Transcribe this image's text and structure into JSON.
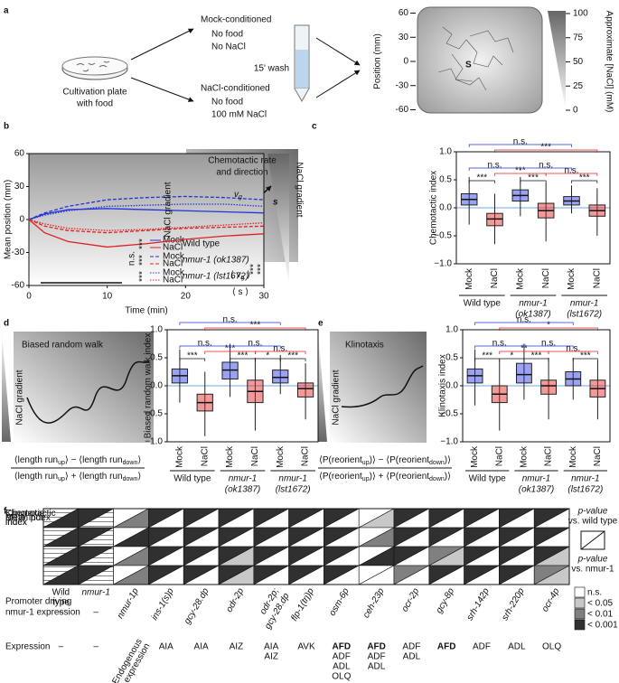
{
  "panel_a": {
    "label": "a",
    "plate": [
      "Cultivation plate",
      "with food"
    ],
    "mock": {
      "title": "Mock-conditioned",
      "lines": [
        "No food",
        "No NaCl"
      ]
    },
    "nacl": {
      "title": "NaCl-conditioned",
      "lines": [
        "No food",
        "100 mM NaCl"
      ]
    },
    "wash": "15' wash",
    "start": "S",
    "position_axis": {
      "label": "Position (mm)",
      "ticks": [
        60,
        30,
        0,
        -30,
        -60
      ]
    },
    "nacl_axis": {
      "label": "Approximate [NaCl] (mM)",
      "ticks": [
        100,
        75,
        50,
        25,
        0
      ]
    }
  },
  "panel_c_diagram": {
    "title": [
      "Chemotactic rate",
      "and direction"
    ],
    "gradient": "NaCl gradient",
    "vg": [
      {
        "t": "v"
      },
      {
        "sub": "g"
      }
    ],
    "s": "s",
    "num": [
      {
        "t": "⟨ v"
      },
      {
        "sub": "g"
      },
      {
        "t": " ⟩"
      }
    ],
    "den": [
      {
        "t": "⟨ s ⟩"
      }
    ]
  },
  "panel_d_diagram": {
    "title": "Biased random walk",
    "gradient": "NaCl gradient",
    "num": [
      {
        "t": "⟨length run"
      },
      {
        "sub": "up"
      },
      {
        "t": "⟩ − ⟨length run"
      },
      {
        "sub": "down"
      },
      {
        "t": "⟩"
      }
    ],
    "den": [
      {
        "t": "⟨length run"
      },
      {
        "sub": "up"
      },
      {
        "t": "⟩ + ⟨length run"
      },
      {
        "sub": "down"
      },
      {
        "t": "⟩"
      }
    ]
  },
  "panel_e_diagram": {
    "title": "Klinotaxis",
    "gradient": "NaCl gradient",
    "num": [
      {
        "t": "⟨P(reorient"
      },
      {
        "sub": "up"
      },
      {
        "t": ")⟩ − ⟨P(reorient"
      },
      {
        "sub": "down"
      },
      {
        "t": ")⟩"
      }
    ],
    "den": [
      {
        "t": "⟨P(reorient"
      },
      {
        "sub": "up"
      },
      {
        "t": ")⟩ + ⟨P(reorient"
      },
      {
        "sub": "down"
      },
      {
        "t": ")⟩"
      }
    ]
  },
  "chart_data": [
    {
      "type": "line",
      "panel": "b",
      "x_label": "Time (min)",
      "y_label": "Mean position (mm)",
      "gradient_label": "NaCl gradient",
      "x": [
        0,
        2,
        5,
        10,
        15,
        20,
        25,
        30
      ],
      "xlim": [
        0,
        30
      ],
      "xticks": [
        0,
        10,
        20,
        30
      ],
      "ylim": [
        -60,
        60
      ],
      "yticks": [
        60,
        30,
        0,
        -30,
        -60
      ],
      "groups": [
        "Wild type",
        "nmur-1 (ok1387)",
        "nmur-1 (lst1672)"
      ],
      "series": [
        {
          "name": "Mock",
          "group": 0,
          "color": "#2233dd",
          "dash": "solid",
          "values": [
            0,
            5,
            9,
            10,
            9,
            8,
            7,
            6
          ]
        },
        {
          "name": "NaCl",
          "group": 0,
          "color": "#e02020",
          "dash": "solid",
          "values": [
            0,
            -12,
            -20,
            -25,
            -22,
            -18,
            -15,
            -13
          ]
        },
        {
          "name": "Mock",
          "group": 1,
          "color": "#2233dd",
          "dash": "dashed",
          "values": [
            0,
            6,
            12,
            18,
            20,
            21,
            20,
            18
          ]
        },
        {
          "name": "NaCl",
          "group": 1,
          "color": "#e02020",
          "dash": "dashed",
          "values": [
            0,
            -6,
            -10,
            -12,
            -10,
            -8,
            -7,
            -6
          ]
        },
        {
          "name": "Mock",
          "group": 2,
          "color": "#2233dd",
          "dash": "dotted",
          "values": [
            0,
            4,
            8,
            12,
            13,
            14,
            14,
            12
          ]
        },
        {
          "name": "NaCl",
          "group": 2,
          "color": "#e02020",
          "dash": "dotted",
          "values": [
            0,
            -4,
            -8,
            -10,
            -9,
            -7,
            -5,
            -3
          ]
        }
      ],
      "annotations": [
        {
          "text": "n.s.",
          "color": "#2233dd"
        },
        {
          "text": "***",
          "color": "#111111"
        },
        {
          "text": "***",
          "color": "#111111"
        },
        {
          "text": "***",
          "color": "#111111"
        },
        {
          "text": "***",
          "color": "#e02020"
        },
        {
          "text": "***",
          "color": "#e02020"
        }
      ]
    },
    {
      "type": "box",
      "panel": "c",
      "y_label": "Chemotactic index",
      "categories": [
        "Mock",
        "NaCl",
        "Mock",
        "NaCl",
        "Mock",
        "NaCl"
      ],
      "colors": [
        "#2233dd",
        "#e02020"
      ],
      "groups": [
        [
          "Wild type"
        ],
        [
          "nmur-1",
          "(ok1387)"
        ],
        [
          "nmur-1",
          "(lst1672)"
        ]
      ],
      "ylim": [
        -1,
        1
      ],
      "yticks": [
        {
          "value": -1,
          "label": "−1.0"
        },
        {
          "value": -0.5,
          "label": "−0.5"
        },
        {
          "value": 0,
          "label": "0.0"
        },
        {
          "value": 0.5,
          "label": "0.5"
        },
        {
          "value": 1,
          "label": "1.0"
        }
      ],
      "boxes": [
        {
          "low": -0.3,
          "q1": 0.05,
          "median": 0.15,
          "q3": 0.25,
          "high": 0.55
        },
        {
          "low": -0.65,
          "q1": -0.32,
          "median": -0.2,
          "q3": -0.1,
          "high": 0.25
        },
        {
          "low": -0.15,
          "q1": 0.12,
          "median": 0.22,
          "q3": 0.32,
          "high": 0.55
        },
        {
          "low": -0.6,
          "q1": -0.18,
          "median": -0.05,
          "q3": 0.08,
          "high": 0.45
        },
        {
          "low": -0.1,
          "q1": 0.05,
          "median": 0.12,
          "q3": 0.2,
          "high": 0.4
        },
        {
          "low": -0.5,
          "q1": -0.15,
          "median": -0.05,
          "q3": 0.05,
          "high": 0.35
        }
      ],
      "brackets": [
        {
          "text": "***",
          "color": "#111111",
          "from": 0,
          "to": 1
        },
        {
          "text": "***",
          "color": "#111111",
          "from": 2,
          "to": 3
        },
        {
          "text": "***",
          "color": "#111111",
          "from": 4,
          "to": 5
        },
        {
          "text": "n.s.",
          "color": "#2233dd",
          "from": 0,
          "to": 2
        },
        {
          "text": "***",
          "color": "#e02020",
          "from": 1,
          "to": 3
        },
        {
          "text": "n.s.",
          "color": "#2233dd",
          "from": 2,
          "to": 4
        },
        {
          "text": "n.s.",
          "color": "#e02020",
          "from": 3,
          "to": 5
        },
        {
          "text": "n.s.",
          "color": "#2233dd",
          "from": 0,
          "to": 4
        },
        {
          "text": "***",
          "color": "#e02020",
          "from": 1,
          "to": 5
        }
      ]
    },
    {
      "type": "box",
      "panel": "d",
      "y_label": "Biased random walk index",
      "categories": [
        "Mock",
        "NaCl",
        "Mock",
        "NaCl",
        "Mock",
        "NaCl"
      ],
      "colors": [
        "#2233dd",
        "#e02020"
      ],
      "groups": [
        [
          "Wild type"
        ],
        [
          "nmur-1",
          "(ok1387)"
        ],
        [
          "nmur-1",
          "(lst1672)"
        ]
      ],
      "ylim": [
        -1,
        1
      ],
      "yticks": [
        {
          "value": -1,
          "label": "−1.0"
        },
        {
          "value": -0.5,
          "label": "−0.5"
        },
        {
          "value": 0,
          "label": "0.0"
        },
        {
          "value": 0.5,
          "label": "0.5"
        },
        {
          "value": 1,
          "label": "1.0"
        }
      ],
      "boxes": [
        {
          "low": -0.3,
          "q1": 0.05,
          "median": 0.18,
          "q3": 0.3,
          "high": 0.65
        },
        {
          "low": -0.9,
          "q1": -0.45,
          "median": -0.3,
          "q3": -0.15,
          "high": 0.25
        },
        {
          "low": -0.2,
          "q1": 0.12,
          "median": 0.28,
          "q3": 0.42,
          "high": 0.75
        },
        {
          "low": -0.8,
          "q1": -0.3,
          "median": -0.1,
          "q3": 0.1,
          "high": 0.5
        },
        {
          "low": -0.15,
          "q1": 0.05,
          "median": 0.15,
          "q3": 0.28,
          "high": 0.55
        },
        {
          "low": -0.6,
          "q1": -0.2,
          "median": -0.05,
          "q3": 0.05,
          "high": 0.4
        }
      ],
      "brackets": [
        {
          "text": "***",
          "color": "#111111",
          "from": 0,
          "to": 1
        },
        {
          "text": "***",
          "color": "#111111",
          "from": 2,
          "to": 3
        },
        {
          "text": "*",
          "color": "#111111",
          "from": 3,
          "to": 4
        },
        {
          "text": "***",
          "color": "#111111",
          "from": 4,
          "to": 5
        },
        {
          "text": "n.s.",
          "color": "#2233dd",
          "from": 0,
          "to": 2
        },
        {
          "text": "***",
          "color": "#e02020",
          "from": 1,
          "to": 3
        },
        {
          "text": "n.s.",
          "color": "#2233dd",
          "from": 2,
          "to": 4
        },
        {
          "text": "n.s.",
          "color": "#e02020",
          "from": 3,
          "to": 5
        },
        {
          "text": "n.s.",
          "color": "#2233dd",
          "from": 0,
          "to": 4
        },
        {
          "text": "***",
          "color": "#e02020",
          "from": 1,
          "to": 5
        }
      ]
    },
    {
      "type": "box",
      "panel": "e",
      "y_label": "Klinotaxis index",
      "categories": [
        "Mock",
        "NaCl",
        "Mock",
        "NaCl",
        "Mock",
        "NaCl"
      ],
      "colors": [
        "#2233dd",
        "#e02020"
      ],
      "groups": [
        [
          "Wild type"
        ],
        [
          "nmur-1",
          "(ok1387)"
        ],
        [
          "nmur-1",
          "(lst1672)"
        ]
      ],
      "ylim": [
        -1,
        1
      ],
      "yticks": [
        {
          "value": -1,
          "label": "−1.0"
        },
        {
          "value": -0.5,
          "label": "−0.5"
        },
        {
          "value": 0,
          "label": "0.0"
        },
        {
          "value": 0.5,
          "label": "0.5"
        },
        {
          "value": 1,
          "label": "1.0"
        }
      ],
      "boxes": [
        {
          "low": -0.35,
          "q1": 0.05,
          "median": 0.18,
          "q3": 0.3,
          "high": 0.65
        },
        {
          "low": -0.8,
          "q1": -0.3,
          "median": -0.15,
          "q3": 0.0,
          "high": 0.45
        },
        {
          "low": -0.25,
          "q1": 0.05,
          "median": 0.2,
          "q3": 0.4,
          "high": 0.75
        },
        {
          "low": -0.6,
          "q1": -0.15,
          "median": 0.0,
          "q3": 0.1,
          "high": 0.5
        },
        {
          "low": -0.25,
          "q1": 0.0,
          "median": 0.12,
          "q3": 0.25,
          "high": 0.5
        },
        {
          "low": -0.6,
          "q1": -0.2,
          "median": -0.05,
          "q3": 0.1,
          "high": 0.45
        }
      ],
      "brackets": [
        {
          "text": "***",
          "color": "#111111",
          "from": 0,
          "to": 1
        },
        {
          "text": "*",
          "color": "#111111",
          "from": 1,
          "to": 2
        },
        {
          "text": "***",
          "color": "#111111",
          "from": 2,
          "to": 3
        },
        {
          "text": "***",
          "color": "#111111",
          "from": 4,
          "to": 5
        },
        {
          "text": "n.s.",
          "color": "#2233dd",
          "from": 0,
          "to": 2
        },
        {
          "text": "**",
          "color": "#e02020",
          "from": 1,
          "to": 3
        },
        {
          "text": "n.s.",
          "color": "#2233dd",
          "from": 2,
          "to": 4
        },
        {
          "text": "n.s.",
          "color": "#e02020",
          "from": 3,
          "to": 5
        },
        {
          "text": "n.s.",
          "color": "#2233dd",
          "from": 0,
          "to": 4
        },
        {
          "text": "*",
          "color": "#e02020",
          "from": 1,
          "to": 5
        }
      ]
    }
  ],
  "panel_f": {
    "label": "f",
    "row_labels": [
      [
        "Mean position"
      ],
      [
        "Chemotactic",
        "index"
      ],
      [
        "BRW index"
      ],
      [
        "Klinotaxis",
        "index"
      ]
    ],
    "column_names": [
      [
        "Wild",
        "type"
      ],
      [
        "nmur-1"
      ]
    ],
    "promoter_label": [
      "Promoter driving",
      "nmur-1 expression"
    ],
    "promoters": [
      [
        "–"
      ],
      [
        "–"
      ],
      [
        "nmur-1p"
      ],
      [
        "ins-1(s)p"
      ],
      [
        "gcy-28.dp"
      ],
      [
        "odr-2p"
      ],
      [
        "odr-2p;",
        "gcy-28.dp"
      ],
      [
        "flp-1(trj)p"
      ],
      [
        "osm-6p"
      ],
      [
        "ceh-23p"
      ],
      [
        "ocr-2p"
      ],
      [
        "gcy-8p"
      ],
      [
        "srh-142p"
      ],
      [
        "srh-220p"
      ],
      [
        "ocr-4p"
      ]
    ],
    "expression_label": "Expression",
    "expression": [
      [
        "–"
      ],
      [
        "–"
      ],
      [
        "Endogenous",
        "expression"
      ],
      [
        "AIA"
      ],
      [
        "AIA"
      ],
      [
        "AIZ"
      ],
      [
        "AIA",
        "AIZ"
      ],
      [
        "AVK"
      ],
      [
        "AFD",
        "ADF",
        "ADL",
        "OLQ"
      ],
      [
        "AFD",
        "ADF",
        "ADL"
      ],
      [
        "ADF",
        "ADL"
      ],
      [
        "AFD"
      ],
      [
        "ADF"
      ],
      [
        "ADL"
      ],
      [
        "OLQ"
      ]
    ],
    "bold": "AFD",
    "levels": [
      {
        "label": "n.s.",
        "color": "#ffffff"
      },
      {
        "label": "< 0.05",
        "color": "#c8c8c8"
      },
      {
        "label": "< 0.01",
        "color": "#808080"
      },
      {
        "label": "< 0.001",
        "color": "#303030"
      }
    ],
    "key": {
      "upper": [
        "p-value",
        "vs. wild type"
      ],
      "lower": [
        "p-value",
        "vs. nmur-1"
      ]
    },
    "cells": [
      [
        [
          null,
          3
        ],
        [
          3,
          null
        ],
        [
          0,
          2
        ],
        [
          3,
          0
        ],
        [
          3,
          0
        ],
        [
          3,
          0
        ],
        [
          3,
          0
        ],
        [
          3,
          0
        ],
        [
          3,
          0
        ],
        [
          0,
          1
        ],
        [
          3,
          0
        ],
        [
          3,
          0
        ],
        [
          3,
          0
        ],
        [
          3,
          0
        ],
        [
          3,
          0
        ]
      ],
      [
        [
          null,
          3
        ],
        [
          3,
          null
        ],
        [
          0,
          3
        ],
        [
          3,
          0
        ],
        [
          3,
          0
        ],
        [
          3,
          0
        ],
        [
          3,
          0
        ],
        [
          3,
          0
        ],
        [
          3,
          0
        ],
        [
          0,
          2
        ],
        [
          3,
          0
        ],
        [
          3,
          0
        ],
        [
          3,
          0
        ],
        [
          3,
          0
        ],
        [
          3,
          0
        ]
      ],
      [
        [
          null,
          3
        ],
        [
          3,
          null
        ],
        [
          0,
          2
        ],
        [
          3,
          0
        ],
        [
          3,
          0
        ],
        [
          3,
          1
        ],
        [
          3,
          0
        ],
        [
          3,
          0
        ],
        [
          3,
          0
        ],
        [
          0,
          3
        ],
        [
          3,
          0
        ],
        [
          2,
          1
        ],
        [
          3,
          0
        ],
        [
          3,
          0
        ],
        [
          3,
          1
        ]
      ],
      [
        [
          null,
          3
        ],
        [
          3,
          null
        ],
        [
          0,
          2
        ],
        [
          3,
          0
        ],
        [
          3,
          0
        ],
        [
          3,
          1
        ],
        [
          3,
          0
        ],
        [
          3,
          0
        ],
        [
          3,
          0
        ],
        [
          0,
          0
        ],
        [
          2,
          0
        ],
        [
          3,
          0
        ],
        [
          3,
          0
        ],
        [
          3,
          0
        ],
        [
          2,
          1
        ]
      ]
    ]
  }
}
